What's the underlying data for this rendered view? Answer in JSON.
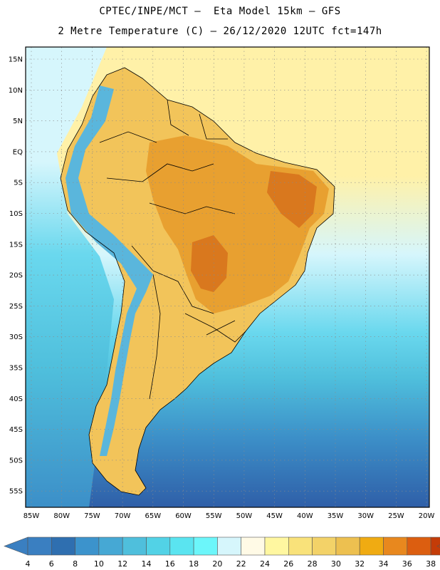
{
  "title_line1": "CPTEC/INPE/MCT –  Eta Model 15km – GFS",
  "title_line2": "2 Metre Temperature (C) – 26/12/2020 12UTC fct=147h",
  "lat_labels": [
    "15N",
    "10N",
    "5N",
    "EQ",
    "5S",
    "10S",
    "15S",
    "20S",
    "25S",
    "30S",
    "35S",
    "40S",
    "45S",
    "50S",
    "55S"
  ],
  "lon_labels": [
    "85W",
    "80W",
    "75W",
    "70W",
    "65W",
    "60W",
    "55W",
    "50W",
    "45W",
    "40W",
    "35W",
    "30W",
    "25W",
    "20W"
  ],
  "colorbar": {
    "ticks": [
      "4",
      "6",
      "8",
      "10",
      "12",
      "14",
      "16",
      "18",
      "20",
      "22",
      "24",
      "26",
      "28",
      "30",
      "32",
      "34",
      "36",
      "38"
    ],
    "colors": [
      "#3a7fc1",
      "#2f6fb0",
      "#3c93cc",
      "#46a8d4",
      "#4fbfdc",
      "#52d2e6",
      "#5ae4f0",
      "#6cf6fa",
      "#d6f6fc",
      "#fffae6",
      "#fff7a0",
      "#f9e27a",
      "#f3d268",
      "#edc050",
      "#f0ab12",
      "#e8881e",
      "#dc5e10",
      "#c43c08"
    ],
    "low_color": "#3a7fc1",
    "high_color": "#c43c08"
  },
  "palette": {
    "ocean_deep": "#2f5fa8",
    "ocean_mid": "#3c8fc8",
    "ocean_cool": "#4fbfdc",
    "ocean_mild": "#6ad8ee",
    "ocean_warm": "#d6f6fc",
    "ocean_tropical": "#fff1a8",
    "land_warm": "#f2c45a",
    "land_hot": "#e8a030",
    "land_very_hot": "#d9781e",
    "andes": "#5ab6dc"
  }
}
